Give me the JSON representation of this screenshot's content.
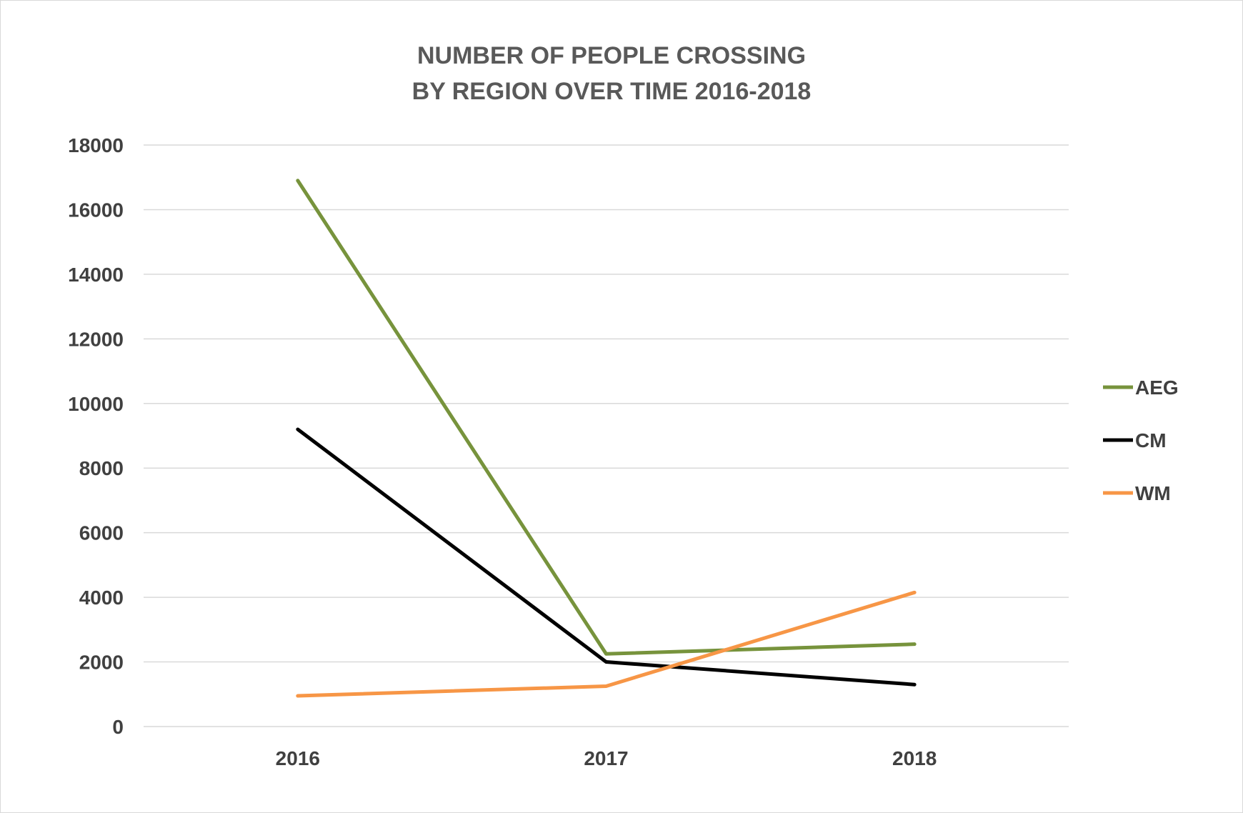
{
  "chart_data": {
    "type": "line",
    "title_lines": [
      "NUMBER OF PEOPLE CROSSING",
      "BY REGION OVER TIME 2016-2018"
    ],
    "xlabel": "",
    "ylabel": "",
    "categories": [
      "2016",
      "2017",
      "2018"
    ],
    "ylim": [
      0,
      18000
    ],
    "yticks": [
      0,
      2000,
      4000,
      6000,
      8000,
      10000,
      12000,
      14000,
      16000,
      18000
    ],
    "grid": true,
    "legend_position": "right",
    "series": [
      {
        "name": "AEG",
        "color": "#77933c",
        "values": [
          16900,
          2250,
          2550
        ]
      },
      {
        "name": "CM",
        "color": "#000000",
        "values": [
          9200,
          2000,
          1300
        ]
      },
      {
        "name": "WM",
        "color": "#f79646",
        "values": [
          950,
          1250,
          4150
        ]
      }
    ]
  }
}
